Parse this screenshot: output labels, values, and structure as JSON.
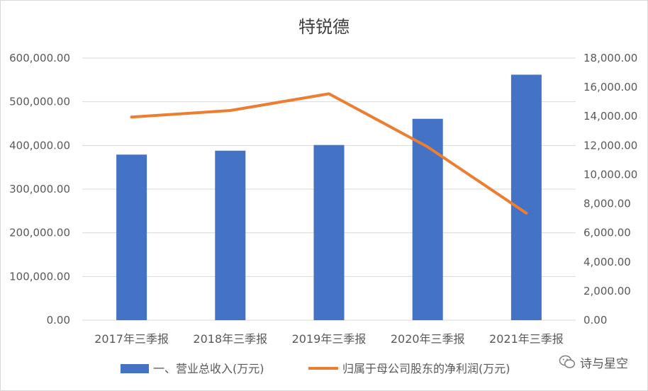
{
  "chart_data": {
    "type": "bar+line",
    "title": "特锐德",
    "categories": [
      "2017年三季报",
      "2018年三季报",
      "2019年三季报",
      "2020年三季报",
      "2021年三季报"
    ],
    "series": [
      {
        "name": "一、营业总收入(万元)",
        "type": "bar",
        "axis": "left",
        "values": [
          379000,
          388000,
          401000,
          461000,
          562000
        ],
        "color": "#4472C4"
      },
      {
        "name": "归属于母公司股东的净利润(万元)",
        "type": "line",
        "axis": "right",
        "values": [
          13950,
          14400,
          15550,
          11900,
          7350
        ],
        "color": "#ED7D31"
      }
    ],
    "y_left": {
      "min": 0,
      "max": 600000,
      "step": 100000,
      "ticks": [
        "0.00",
        "100,000.00",
        "200,000.00",
        "300,000.00",
        "400,000.00",
        "500,000.00",
        "600,000.00"
      ]
    },
    "y_right": {
      "min": 0,
      "max": 18000,
      "step": 2000,
      "ticks": [
        "0.00",
        "2,000.00",
        "4,000.00",
        "6,000.00",
        "8,000.00",
        "10,000.00",
        "12,000.00",
        "14,000.00",
        "16,000.00",
        "18,000.00"
      ]
    },
    "grid": true,
    "legend_position": "bottom"
  },
  "watermark": {
    "text": "诗与星空",
    "icon": "wechat-icon"
  }
}
